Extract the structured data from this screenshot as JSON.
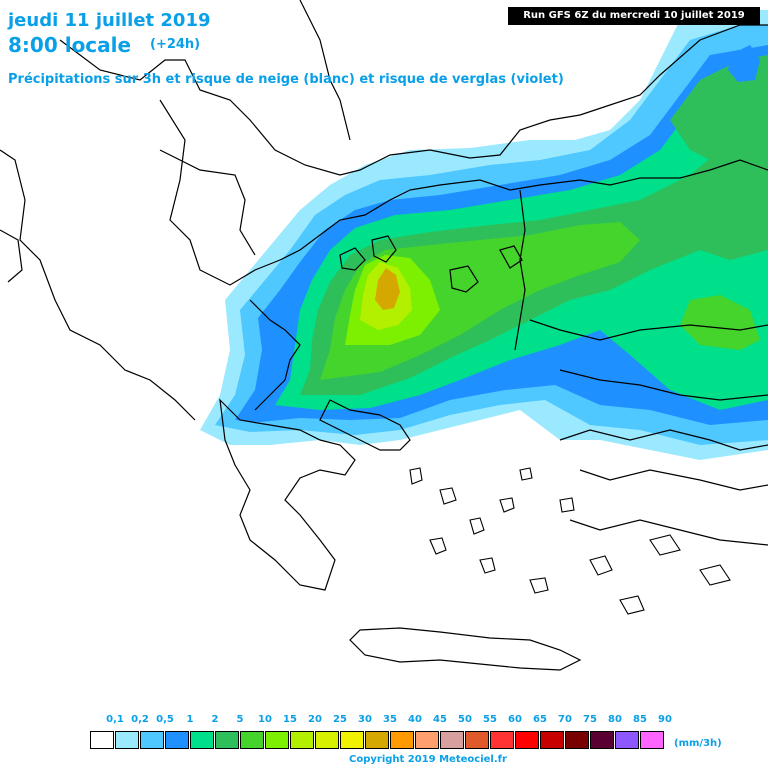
{
  "header": {
    "date_line": "jeudi 11 juillet 2019",
    "time_line": "8:00 locale",
    "lead_time": "(+24h)",
    "subtitle": "Précipitations sur 3h et risque de neige (blanc) et risque de verglas (violet)",
    "run_info": "Run GFS 6Z du mercredi 10 juillet 2019"
  },
  "legend": {
    "units": "(mm/3h)",
    "labels": [
      "0,1",
      "0,2",
      "0,5",
      "1",
      "2",
      "5",
      "10",
      "15",
      "20",
      "25",
      "30",
      "35",
      "40",
      "45",
      "50",
      "55",
      "60",
      "65",
      "70",
      "75",
      "80",
      "85",
      "90"
    ],
    "colors": [
      "#ffffff",
      "#9be9ff",
      "#4fc7ff",
      "#1e90ff",
      "#00e08a",
      "#2fbf5a",
      "#44d42c",
      "#7cf000",
      "#b3f000",
      "#d6f000",
      "#f2f200",
      "#d4a800",
      "#ff9a00",
      "#ff9f6e",
      "#d89f9f",
      "#e05a2c",
      "#ff3333",
      "#ff0000",
      "#c80000",
      "#7a0000",
      "#5a0033",
      "#8d58ff",
      "#ff66ff"
    ]
  },
  "footer": {
    "copyright": "Copyright 2019 Meteociel.fr"
  }
}
